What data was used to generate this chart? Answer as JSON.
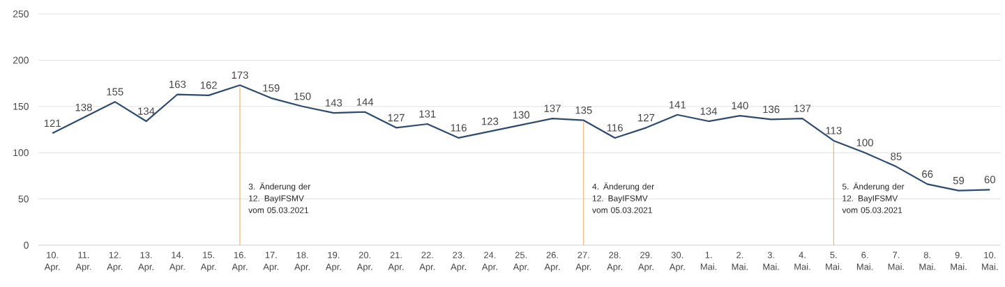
{
  "chart_data": {
    "type": "line",
    "categories": [
      "10. Apr.",
      "11. Apr.",
      "12. Apr.",
      "13. Apr.",
      "14. Apr.",
      "15. Apr.",
      "16. Apr.",
      "17. Apr.",
      "18. Apr.",
      "19. Apr.",
      "20. Apr.",
      "21. Apr.",
      "22. Apr.",
      "23. Apr.",
      "24. Apr.",
      "25. Apr.",
      "26. Apr.",
      "27. Apr.",
      "28. Apr.",
      "29. Apr.",
      "30. Apr.",
      "1. Mai.",
      "2. Mai.",
      "3. Mai.",
      "4. Mai.",
      "5. Mai.",
      "6. Mai.",
      "7. Mai.",
      "8. Mai.",
      "9. Mai.",
      "10. Mai."
    ],
    "values": [
      121,
      138,
      155,
      134,
      163,
      162,
      173,
      159,
      150,
      143,
      144,
      127,
      131,
      116,
      123,
      130,
      137,
      135,
      116,
      127,
      141,
      134,
      140,
      136,
      137,
      113,
      100,
      85,
      66,
      59,
      60
    ],
    "color": "#2e4a6c",
    "data_labels": true,
    "ylim": [
      0,
      250
    ],
    "yticks": [
      0,
      50,
      100,
      150,
      200,
      250
    ],
    "grid": "y",
    "ref_lines": [
      {
        "axis": "x",
        "value": "16. Apr.",
        "label": "3. Änderung der 12. BayIFSMV vom 05.03.2021",
        "color": "#e8a25c"
      },
      {
        "axis": "x",
        "value": "27. Apr.",
        "label": "4. Änderung der 12. BayIFSMV vom 05.03.2021",
        "color": "#e8a25c"
      },
      {
        "axis": "x",
        "value": "5. Mai.",
        "label": "5. Änderung der 12. BayIFSMV vom 05.03.2021",
        "color": "#e8a25c"
      }
    ]
  }
}
